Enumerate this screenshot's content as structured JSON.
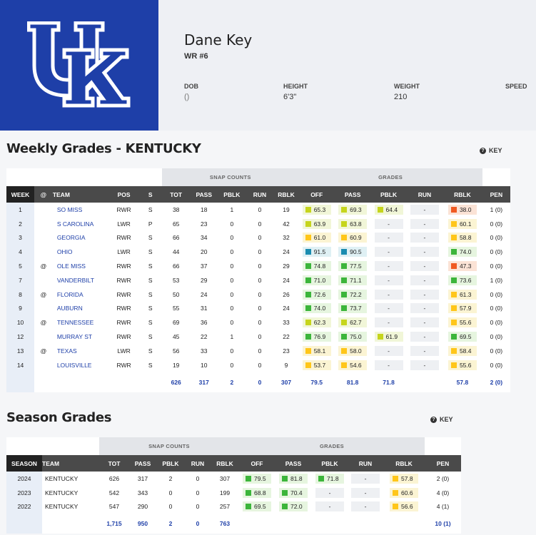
{
  "player": {
    "name": "Dane Key",
    "position": "WR #6",
    "dob_label": "DOB",
    "dob_value": "()",
    "height_label": "HEIGHT",
    "height_value": "6'3\"",
    "weight_label": "WEIGHT",
    "weight_value": "210",
    "speed_label": "SPEED"
  },
  "colors": {
    "brand": "#1e3fa8",
    "green": "#3cb53b",
    "yellow": "#ffc61a",
    "lime": "#c6d51c",
    "blue": "#1a8cb0",
    "orange": "#f05a21"
  },
  "key_label": "KEY",
  "weekly": {
    "title": "Weekly Grades - KENTUCKY",
    "group_snap": "SNAP COUNTS",
    "group_grades": "GRADES",
    "headers": [
      "WEEK",
      "@",
      "TEAM",
      "POS",
      "S",
      "TOT",
      "PASS",
      "PBLK",
      "RUN",
      "RBLK",
      "OFF",
      "PASS",
      "PBLK",
      "RUN",
      "RBLK",
      "PEN"
    ],
    "rows": [
      {
        "week": "1",
        "at": "",
        "team": "SO MISS",
        "pos": "RWR",
        "s": "S",
        "tot": "38",
        "pass": "18",
        "pblk": "1",
        "run": "0",
        "rblk": "19",
        "off": [
          "65.3",
          "lime"
        ],
        "gpass": [
          "69.3",
          "lime"
        ],
        "gpblk": [
          "64.4",
          "lime"
        ],
        "grun": [
          "-",
          "empty"
        ],
        "grblk": [
          "38.0",
          "orange"
        ],
        "pen": "1 (0)"
      },
      {
        "week": "2",
        "at": "",
        "team": "S CAROLINA",
        "pos": "LWR",
        "s": "P",
        "tot": "65",
        "pass": "23",
        "pblk": "0",
        "run": "0",
        "rblk": "42",
        "off": [
          "63.9",
          "lime"
        ],
        "gpass": [
          "63.8",
          "lime"
        ],
        "gpblk": [
          "-",
          "empty"
        ],
        "grun": [
          "-",
          "empty"
        ],
        "grblk": [
          "60.1",
          "yellow"
        ],
        "pen": "0 (0)"
      },
      {
        "week": "3",
        "at": "",
        "team": "GEORGIA",
        "pos": "RWR",
        "s": "S",
        "tot": "66",
        "pass": "34",
        "pblk": "0",
        "run": "0",
        "rblk": "32",
        "off": [
          "61.0",
          "yellow"
        ],
        "gpass": [
          "60.9",
          "yellow"
        ],
        "gpblk": [
          "-",
          "empty"
        ],
        "grun": [
          "-",
          "empty"
        ],
        "grblk": [
          "58.8",
          "yellow"
        ],
        "pen": "0 (0)"
      },
      {
        "week": "4",
        "at": "",
        "team": "OHIO",
        "pos": "LWR",
        "s": "S",
        "tot": "44",
        "pass": "20",
        "pblk": "0",
        "run": "0",
        "rblk": "24",
        "off": [
          "91.5",
          "blue"
        ],
        "gpass": [
          "90.5",
          "blue"
        ],
        "gpblk": [
          "-",
          "empty"
        ],
        "grun": [
          "-",
          "empty"
        ],
        "grblk": [
          "74.0",
          "green"
        ],
        "pen": "0 (0)"
      },
      {
        "week": "5",
        "at": "@",
        "team": "OLE MISS",
        "pos": "RWR",
        "s": "S",
        "tot": "66",
        "pass": "37",
        "pblk": "0",
        "run": "0",
        "rblk": "29",
        "off": [
          "74.8",
          "green"
        ],
        "gpass": [
          "77.5",
          "green"
        ],
        "gpblk": [
          "-",
          "empty"
        ],
        "grun": [
          "-",
          "empty"
        ],
        "grblk": [
          "47.3",
          "orange"
        ],
        "pen": "0 (0)"
      },
      {
        "week": "7",
        "at": "",
        "team": "VANDERBILT",
        "pos": "RWR",
        "s": "S",
        "tot": "53",
        "pass": "29",
        "pblk": "0",
        "run": "0",
        "rblk": "24",
        "off": [
          "71.0",
          "green"
        ],
        "gpass": [
          "71.1",
          "green"
        ],
        "gpblk": [
          "-",
          "empty"
        ],
        "grun": [
          "-",
          "empty"
        ],
        "grblk": [
          "73.6",
          "green"
        ],
        "pen": "1 (0)"
      },
      {
        "week": "8",
        "at": "@",
        "team": "FLORIDA",
        "pos": "RWR",
        "s": "S",
        "tot": "50",
        "pass": "24",
        "pblk": "0",
        "run": "0",
        "rblk": "26",
        "off": [
          "72.6",
          "green"
        ],
        "gpass": [
          "72.2",
          "green"
        ],
        "gpblk": [
          "-",
          "empty"
        ],
        "grun": [
          "-",
          "empty"
        ],
        "grblk": [
          "61.3",
          "yellow"
        ],
        "pen": "0 (0)"
      },
      {
        "week": "9",
        "at": "",
        "team": "AUBURN",
        "pos": "RWR",
        "s": "S",
        "tot": "55",
        "pass": "31",
        "pblk": "0",
        "run": "0",
        "rblk": "24",
        "off": [
          "74.0",
          "green"
        ],
        "gpass": [
          "73.7",
          "green"
        ],
        "gpblk": [
          "-",
          "empty"
        ],
        "grun": [
          "-",
          "empty"
        ],
        "grblk": [
          "57.9",
          "yellow"
        ],
        "pen": "0 (0)"
      },
      {
        "week": "10",
        "at": "@",
        "team": "TENNESSEE",
        "pos": "RWR",
        "s": "S",
        "tot": "69",
        "pass": "36",
        "pblk": "0",
        "run": "0",
        "rblk": "33",
        "off": [
          "62.3",
          "lime"
        ],
        "gpass": [
          "62.7",
          "lime"
        ],
        "gpblk": [
          "-",
          "empty"
        ],
        "grun": [
          "-",
          "empty"
        ],
        "grblk": [
          "55.6",
          "yellow"
        ],
        "pen": "0 (0)"
      },
      {
        "week": "12",
        "at": "",
        "team": "MURRAY ST",
        "pos": "RWR",
        "s": "S",
        "tot": "45",
        "pass": "22",
        "pblk": "1",
        "run": "0",
        "rblk": "22",
        "off": [
          "76.9",
          "green"
        ],
        "gpass": [
          "75.0",
          "green"
        ],
        "gpblk": [
          "61.9",
          "lime"
        ],
        "grun": [
          "-",
          "empty"
        ],
        "grblk": [
          "69.5",
          "green"
        ],
        "pen": "0 (0)"
      },
      {
        "week": "13",
        "at": "@",
        "team": "TEXAS",
        "pos": "LWR",
        "s": "S",
        "tot": "56",
        "pass": "33",
        "pblk": "0",
        "run": "0",
        "rblk": "23",
        "off": [
          "58.1",
          "yellow"
        ],
        "gpass": [
          "58.0",
          "yellow"
        ],
        "gpblk": [
          "-",
          "empty"
        ],
        "grun": [
          "-",
          "empty"
        ],
        "grblk": [
          "58.4",
          "yellow"
        ],
        "pen": "0 (0)"
      },
      {
        "week": "14",
        "at": "",
        "team": "LOUISVILLE",
        "pos": "RWR",
        "s": "S",
        "tot": "19",
        "pass": "10",
        "pblk": "0",
        "run": "0",
        "rblk": "9",
        "off": [
          "53.7",
          "yellow"
        ],
        "gpass": [
          "54.6",
          "yellow"
        ],
        "gpblk": [
          "-",
          "empty"
        ],
        "grun": [
          "-",
          "empty"
        ],
        "grblk": [
          "55.6",
          "yellow"
        ],
        "pen": "0 (0)"
      }
    ],
    "totals": {
      "tot": "626",
      "pass": "317",
      "pblk": "2",
      "run": "0",
      "rblk": "307",
      "off": "79.5",
      "gpass": "81.8",
      "gpblk": "71.8",
      "grun": "",
      "grblk": "57.8",
      "pen": "2 (0)"
    }
  },
  "season": {
    "title": "Season Grades",
    "group_snap": "SNAP COUNTS",
    "group_grades": "GRADES",
    "headers": [
      "SEASON",
      "TEAM",
      "TOT",
      "PASS",
      "PBLK",
      "RUN",
      "RBLK",
      "OFF",
      "PASS",
      "PBLK",
      "RUN",
      "RBLK",
      "PEN"
    ],
    "rows": [
      {
        "season": "2024",
        "team": "KENTUCKY",
        "tot": "626",
        "pass": "317",
        "pblk": "2",
        "run": "0",
        "rblk": "307",
        "off": [
          "79.5",
          "green"
        ],
        "gpass": [
          "81.8",
          "green"
        ],
        "gpblk": [
          "71.8",
          "green"
        ],
        "grun": [
          "-",
          "empty"
        ],
        "grblk": [
          "57.8",
          "yellow"
        ],
        "pen": "2 (0)"
      },
      {
        "season": "2023",
        "team": "KENTUCKY",
        "tot": "542",
        "pass": "343",
        "pblk": "0",
        "run": "0",
        "rblk": "199",
        "off": [
          "68.8",
          "green"
        ],
        "gpass": [
          "70.4",
          "green"
        ],
        "gpblk": [
          "-",
          "empty"
        ],
        "grun": [
          "-",
          "empty"
        ],
        "grblk": [
          "60.6",
          "yellow"
        ],
        "pen": "4 (0)"
      },
      {
        "season": "2022",
        "team": "KENTUCKY",
        "tot": "547",
        "pass": "290",
        "pblk": "0",
        "run": "0",
        "rblk": "257",
        "off": [
          "69.5",
          "green"
        ],
        "gpass": [
          "72.0",
          "green"
        ],
        "gpblk": [
          "-",
          "empty"
        ],
        "grun": [
          "-",
          "empty"
        ],
        "grblk": [
          "56.6",
          "yellow"
        ],
        "pen": "4 (1)"
      }
    ],
    "totals": {
      "tot": "1,715",
      "pass": "950",
      "pblk": "2",
      "run": "0",
      "rblk": "763",
      "pen": "10 (1)"
    }
  }
}
